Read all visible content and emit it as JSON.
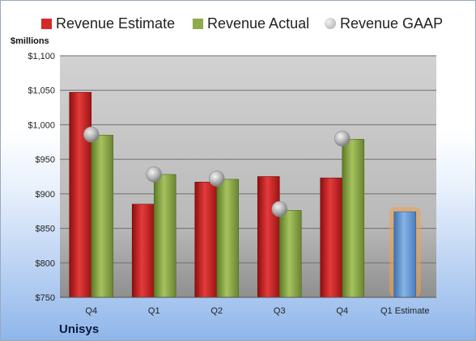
{
  "legend": {
    "estimate_label": "Revenue Estimate",
    "actual_label": "Revenue Actual",
    "gaap_label": "Revenue GAAP"
  },
  "unit_label": "$millions",
  "company": "Unisys",
  "colors": {
    "estimate": "#d42a2a",
    "actual": "#8eab4a",
    "gaap": "#b8b8b8",
    "q1_estimate": "#6d9ed6",
    "q1_estimate_glow": "#f0a04a",
    "plot_background": "#c9c9c9"
  },
  "chart_data": {
    "type": "bar",
    "title": "",
    "xlabel": "",
    "ylabel": "$millions",
    "ylim": [
      750,
      1100
    ],
    "yticks": [
      750,
      800,
      850,
      900,
      950,
      1000,
      1050,
      1100
    ],
    "ytick_labels": [
      "$750",
      "$800",
      "$850",
      "$900",
      "$950",
      "$1,000",
      "$1,050",
      "$1,100"
    ],
    "categories": [
      "Q4",
      "Q1",
      "Q2",
      "Q3",
      "Q4",
      "Q1 Estimate"
    ],
    "series": [
      {
        "name": "Revenue Estimate",
        "values": [
          1047,
          885,
          917,
          925,
          923,
          null
        ]
      },
      {
        "name": "Revenue Actual",
        "values": [
          985,
          928,
          921,
          876,
          979,
          874
        ]
      },
      {
        "name": "Revenue GAAP",
        "values": [
          986,
          928,
          922,
          878,
          980,
          null
        ]
      }
    ],
    "grid": true,
    "legend_position": "top"
  }
}
